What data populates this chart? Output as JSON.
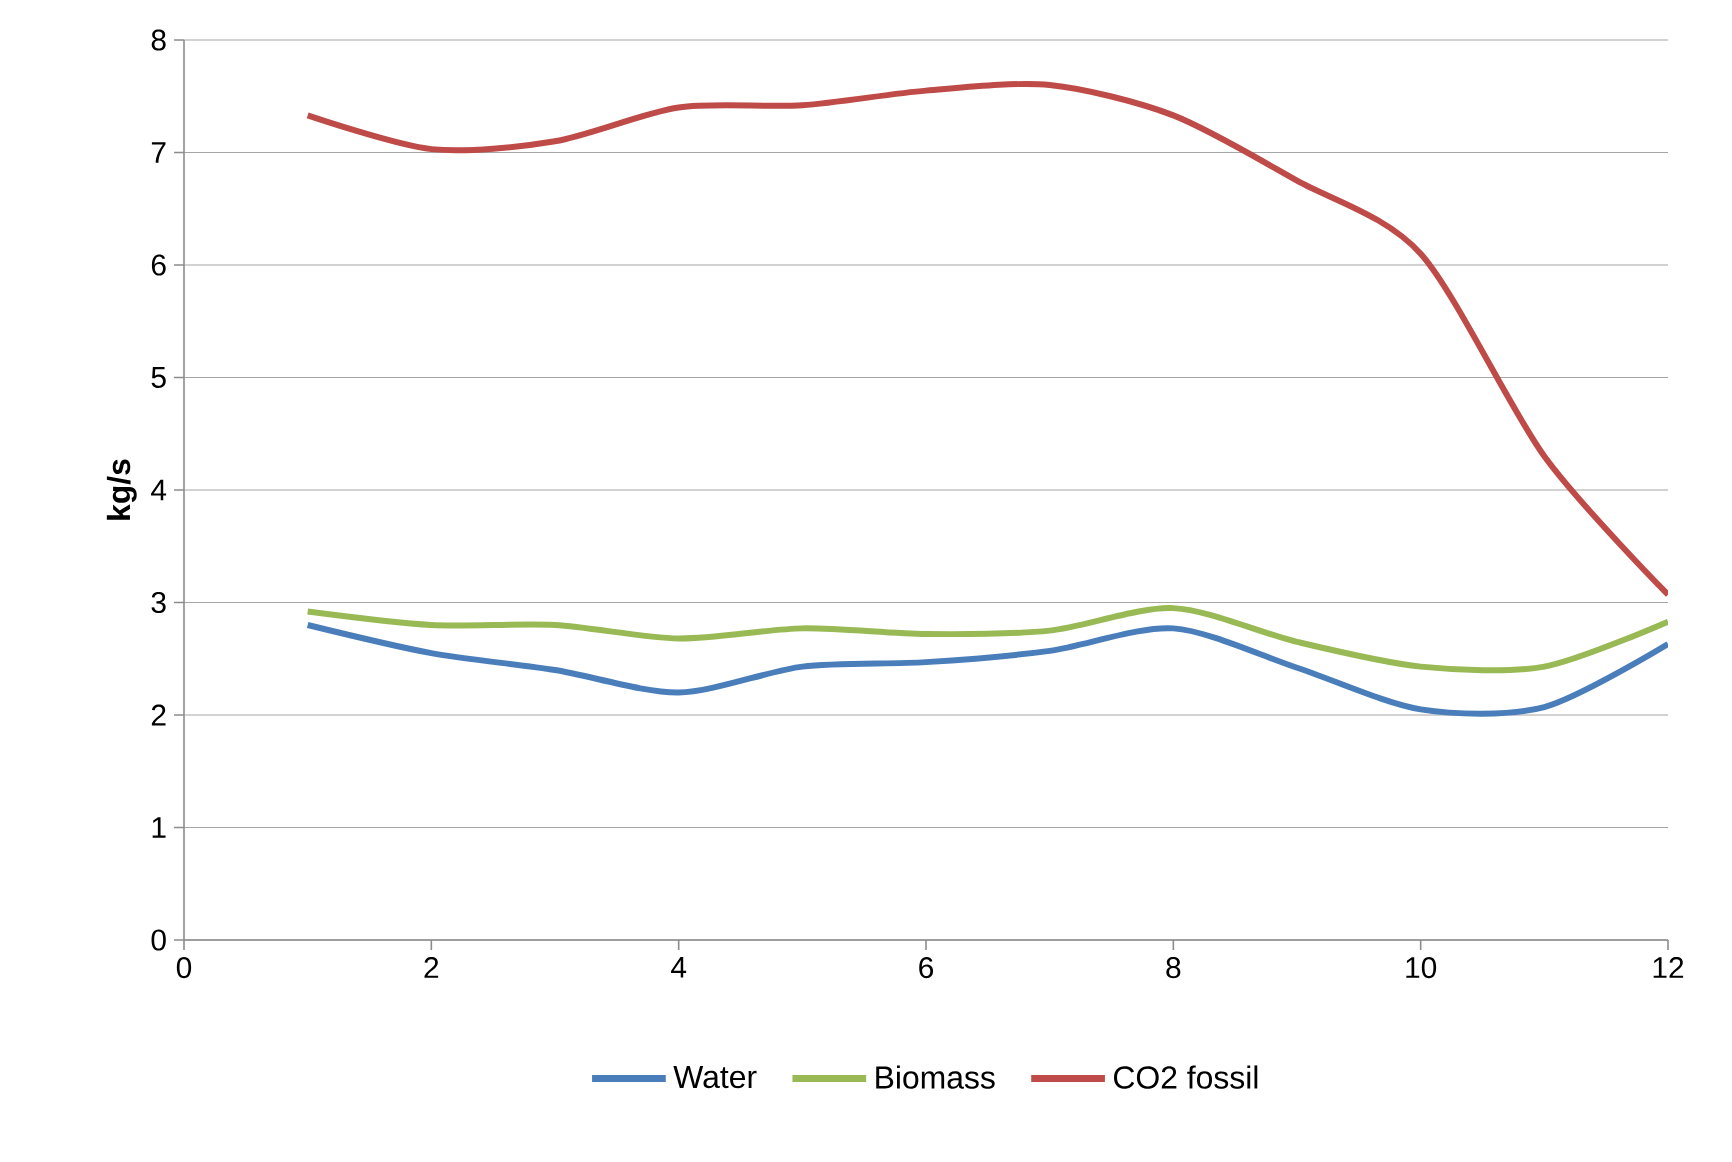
{
  "chart_data": {
    "type": "line",
    "ylabel": "kg/s",
    "x": [
      1,
      2,
      3,
      4,
      5,
      6,
      7,
      8,
      9,
      10,
      11,
      12
    ],
    "series": [
      {
        "name": "Water",
        "color": "#4a7ebb",
        "values": [
          2.8,
          2.55,
          2.4,
          2.2,
          2.43,
          2.47,
          2.57,
          2.77,
          2.42,
          2.05,
          2.07,
          2.63
        ]
      },
      {
        "name": "Biomass",
        "color": "#98b954",
        "values": [
          2.92,
          2.8,
          2.8,
          2.68,
          2.77,
          2.72,
          2.75,
          2.95,
          2.65,
          2.43,
          2.43,
          2.83
        ]
      },
      {
        "name": "CO2 fossil",
        "color": "#be4b48",
        "values": [
          7.33,
          7.03,
          7.1,
          7.4,
          7.42,
          7.55,
          7.6,
          7.33,
          6.75,
          6.1,
          4.3,
          3.07
        ]
      }
    ],
    "xlim": [
      0,
      12
    ],
    "xticks": [
      0,
      2,
      4,
      6,
      8,
      10,
      12
    ],
    "ylim": [
      0,
      8
    ],
    "yticks": [
      0,
      1,
      2,
      3,
      4,
      5,
      6,
      7,
      8
    ],
    "grid": "y",
    "legend": "bottom",
    "marker": "none",
    "line_style": "solid"
  }
}
